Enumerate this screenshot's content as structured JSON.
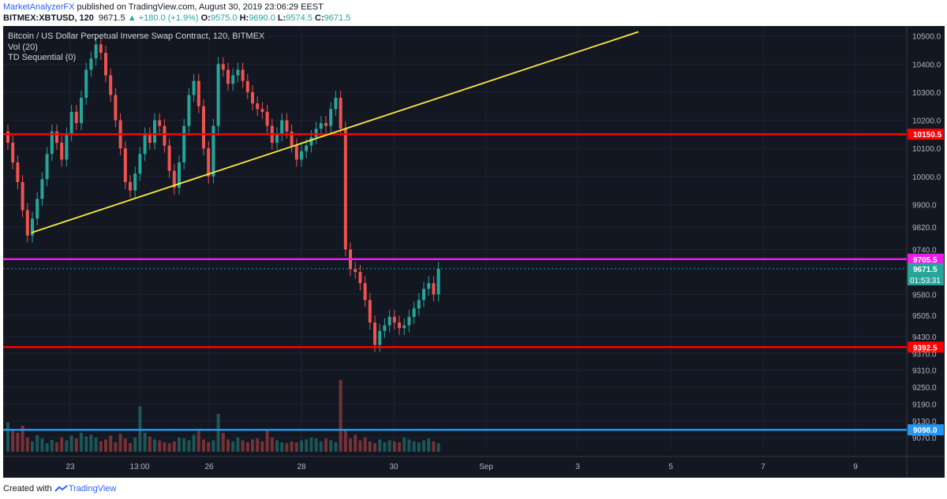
{
  "header": {
    "author": "MarketAnalyzerFX",
    "published": "published on TradingView.com, August 30, 2019 23:06:29 EEST",
    "symbol": "BITMEX:XBTUSD, 120",
    "last": "9671.5",
    "change": "+180.0 (+1.9%)",
    "o_label": "O:",
    "o": "9575.0",
    "h_label": "H:",
    "h": "9690.0",
    "l_label": "L:",
    "l": "9574.5",
    "c_label": "C:",
    "c": "9671.5"
  },
  "legend": {
    "title": "Bitcoin / US Dollar Perpetual Inverse Swap Contract, 120, BITMEX",
    "vol": "Vol (20)",
    "td": "TD Sequential (0)"
  },
  "footer": {
    "created_with": "Created with",
    "brand": "TradingView"
  },
  "colors": {
    "background": "#131722",
    "up": "#26a69a",
    "down": "#ef5350",
    "support_resistance": "#ff0000",
    "magenta": "#e91ee6",
    "blue": "#2196f3",
    "trendline": "#ffeb3b"
  },
  "chart_data": {
    "type": "candlestick",
    "ylim": [
      9020,
      10530
    ],
    "y_ticks": [
      "10500.0",
      "10400.0",
      "10300.0",
      "10200.0",
      "10100.0",
      "10000.0",
      "9900.0",
      "9820.0",
      "9740.0",
      "9580.0",
      "9505.0",
      "9430.0",
      "9370.0",
      "9310.0",
      "9250.0",
      "9190.0",
      "9130.0",
      "9070.0"
    ],
    "x_ticks": [
      "23",
      "13:00",
      "26",
      "28",
      "30",
      "Sep",
      "3",
      "5",
      "7",
      "9"
    ],
    "horizontal_lines": [
      {
        "value": 10150.5,
        "label": "10150.5",
        "color": "#ff0000"
      },
      {
        "value": 9705.5,
        "label": "9705.5",
        "color": "#e91ee6"
      },
      {
        "value": 9392.5,
        "label": "9392.5",
        "color": "#ff0000"
      },
      {
        "value": 9098.0,
        "label": "9098.0",
        "color": "#2196f3"
      }
    ],
    "last_price": {
      "value": 9671.5,
      "label": "9671.5",
      "countdown": "01:53:31"
    },
    "trendline": {
      "from": [
        22.9,
        9800
      ],
      "to": [
        27.3,
        10510
      ]
    },
    "candles_close": [
      10120,
      10050,
      9980,
      9880,
      9790,
      9850,
      9920,
      9990,
      10080,
      10160,
      10120,
      10060,
      10150,
      10230,
      10190,
      10280,
      10380,
      10420,
      10470,
      10440,
      10360,
      10290,
      10200,
      10100,
      9980,
      9950,
      10010,
      10080,
      10150,
      10120,
      10200,
      10180,
      10110,
      10020,
      9960,
      10050,
      10180,
      10290,
      10340,
      10250,
      10100,
      10000,
      10180,
      10400,
      10380,
      10330,
      10360,
      10380,
      10340,
      10300,
      10260,
      10240,
      10230,
      10180,
      10120,
      10150,
      10200,
      10160,
      10110,
      10060,
      10090,
      10110,
      10140,
      10170,
      10190,
      10180,
      10240,
      10280,
      10170,
      9740,
      9670,
      9660,
      9620,
      9560,
      9480,
      9400,
      9450,
      9470,
      9500,
      9480,
      9460,
      9470,
      9500,
      9530,
      9560,
      9600,
      9620,
      9580,
      9671.5
    ],
    "volume": [
      62,
      48,
      40,
      55,
      30,
      22,
      35,
      28,
      18,
      25,
      20,
      30,
      24,
      34,
      28,
      40,
      32,
      36,
      30,
      22,
      26,
      34,
      20,
      38,
      28,
      18,
      30,
      96,
      40,
      32,
      26,
      24,
      20,
      18,
      22,
      30,
      28,
      24,
      36,
      44,
      26,
      20,
      24,
      80,
      40,
      26,
      22,
      30,
      24,
      20,
      26,
      28,
      22,
      48,
      30,
      24,
      20,
      18,
      22,
      20,
      24,
      26,
      30,
      28,
      22,
      28,
      24,
      20,
      152,
      46,
      28,
      36,
      24,
      30,
      22,
      18,
      26,
      20,
      24,
      22,
      20,
      30,
      26,
      22,
      20,
      24,
      28,
      22,
      18
    ]
  }
}
